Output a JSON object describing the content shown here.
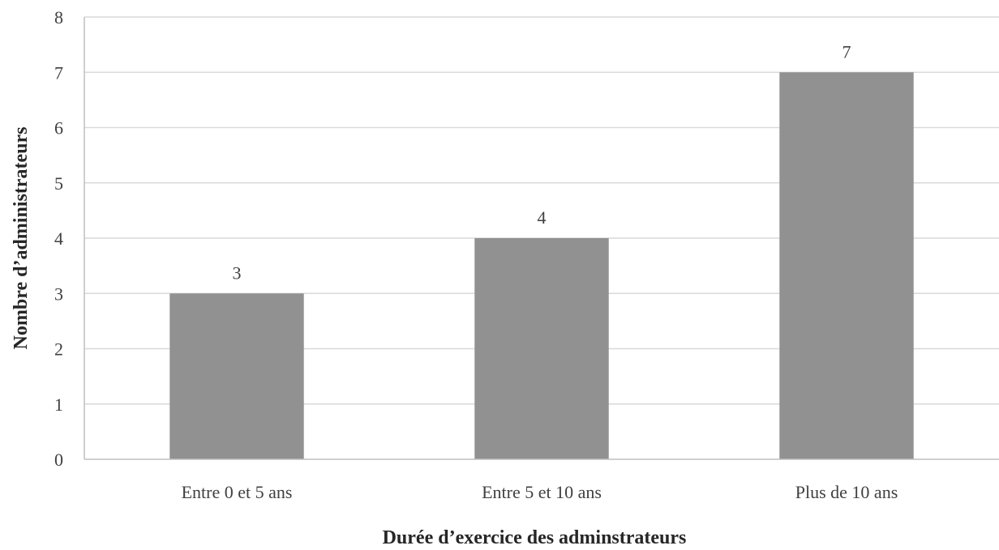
{
  "chart_data": {
    "type": "bar",
    "title": "",
    "xlabel": "Durée d’exercice des adminstrateurs",
    "ylabel": "Nombre d’administrateurs",
    "categories": [
      "Entre 0 et 5 ans",
      "Entre 5 et 10 ans",
      "Plus de 10 ans"
    ],
    "values": [
      3,
      4,
      7
    ],
    "data_labels": [
      "3",
      "4",
      "7"
    ],
    "ylim": [
      0,
      8
    ],
    "yticks": [
      "0",
      "1",
      "2",
      "3",
      "4",
      "5",
      "6",
      "7",
      "8"
    ],
    "grid": true,
    "legend": "none",
    "colors": {
      "bar": "#919191",
      "grid": "#d9d9d9",
      "axis": "#bfbfbf"
    }
  }
}
